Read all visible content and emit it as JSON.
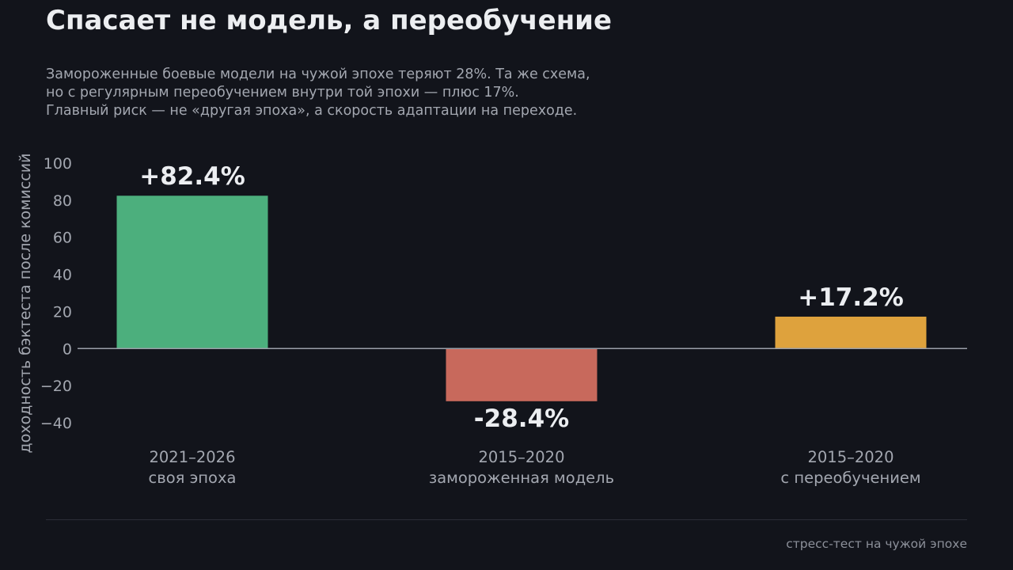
{
  "header": {
    "title": "Спасает не модель, а переобучение",
    "subtitle_lines": [
      "Замороженные боевые модели на чужой эпохе теряют 28%. Та же схема,",
      "но с регулярным переобучением внутри той эпохи — плюс 17%.",
      "Главный риск — не «другая эпоха», а скорость адаптации на переходе."
    ]
  },
  "chart_data": {
    "type": "bar",
    "categories": [
      [
        "2021–2026",
        "своя эпоха"
      ],
      [
        "2015–2020",
        "замороженная модель"
      ],
      [
        "2015–2020",
        "с переобучением"
      ]
    ],
    "values": [
      82.4,
      -28.4,
      17.2
    ],
    "data_labels": [
      "+82.4%",
      "-28.4%",
      "+17.2%"
    ],
    "colors": [
      "#4caf7d",
      "#c8695c",
      "#dea23d"
    ],
    "ylabel": "доходность бэктеста после комиссий",
    "yticks": [
      100,
      80,
      60,
      40,
      20,
      0,
      -20,
      -40
    ],
    "ytick_labels": [
      "100",
      "80",
      "60",
      "40",
      "20",
      "0",
      "−20",
      "−40"
    ],
    "ylim": [
      -40,
      100
    ],
    "grid": false,
    "legend": "none"
  },
  "footer": {
    "note": "стресс-тест на чужой эпохе"
  }
}
